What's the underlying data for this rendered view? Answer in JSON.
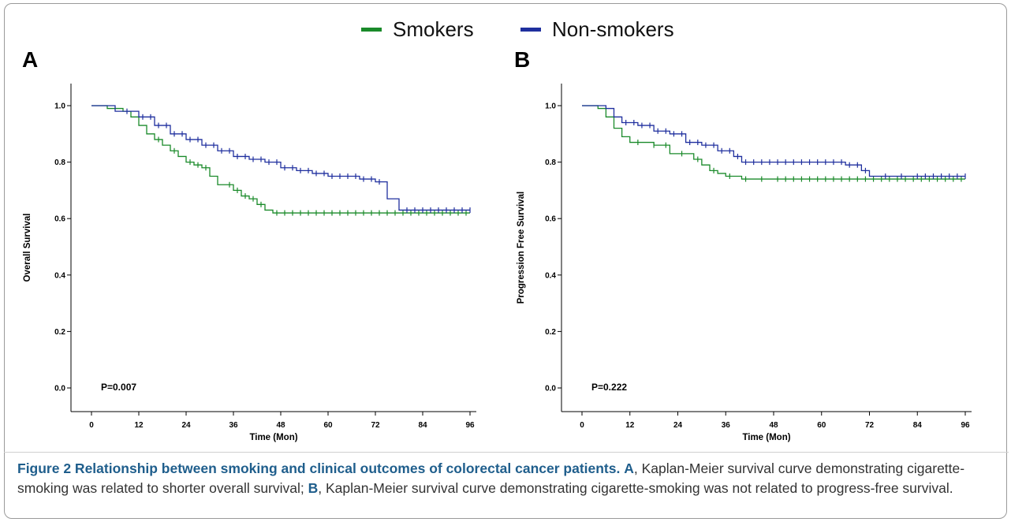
{
  "legend": {
    "smokers_label": "Smokers",
    "nonsmokers_label": "Non-smokers",
    "smokers_color": "#1a8a2a",
    "nonsmokers_color": "#1f2f9e"
  },
  "panels": {
    "a_letter": "A",
    "b_letter": "B"
  },
  "caption": {
    "bold": "Figure 2 Relationship between smoking and clinical outcomes of colorectal cancer patients.",
    "a_letter": "A",
    "a_text": ", Kaplan-Meier survival curve demonstrating cigarette-smoking was related to shorter overall survival; ",
    "b_letter": "B",
    "b_text": ", Kaplan-Meier survival curve demonstrating cigarette-smoking was not related to progress-free survival."
  },
  "chart_data": [
    {
      "type": "line",
      "panel": "A",
      "xlabel": "Time (Mon)",
      "ylabel": "Overall Survival",
      "xlim": [
        0,
        96
      ],
      "ylim": [
        0.0,
        1.0
      ],
      "xticks": [
        "0",
        "12",
        "24",
        "36",
        "48",
        "60",
        "72",
        "84",
        "96"
      ],
      "yticks": [
        "0.0",
        "0.2",
        "0.4",
        "0.6",
        "0.8",
        "1.0"
      ],
      "annotation": "P=0.007",
      "series": [
        {
          "name": "Smokers",
          "color": "#1a8a2a",
          "x": [
            0,
            4,
            8,
            10,
            12,
            14,
            16,
            18,
            20,
            22,
            24,
            26,
            28,
            30,
            32,
            34,
            36,
            38,
            40,
            42,
            44,
            46,
            96
          ],
          "y": [
            1.0,
            0.99,
            0.98,
            0.96,
            0.93,
            0.9,
            0.88,
            0.86,
            0.84,
            0.82,
            0.8,
            0.79,
            0.78,
            0.75,
            0.72,
            0.72,
            0.7,
            0.68,
            0.67,
            0.65,
            0.63,
            0.62,
            0.62
          ],
          "censor_x": [
            17,
            21,
            25,
            27,
            29,
            35,
            37,
            39,
            41,
            43,
            47,
            49,
            51,
            53,
            55,
            57,
            59,
            61,
            63,
            65,
            67,
            69,
            71,
            73,
            75,
            77,
            79,
            81,
            83,
            85,
            87,
            89,
            91,
            93,
            95
          ]
        },
        {
          "name": "Non-smokers",
          "color": "#1f2f9e",
          "x": [
            0,
            6,
            12,
            16,
            20,
            24,
            28,
            32,
            36,
            40,
            44,
            48,
            52,
            56,
            60,
            64,
            68,
            70,
            72,
            75,
            78,
            96
          ],
          "y": [
            1.0,
            0.98,
            0.96,
            0.93,
            0.9,
            0.88,
            0.86,
            0.84,
            0.82,
            0.81,
            0.8,
            0.78,
            0.77,
            0.76,
            0.75,
            0.75,
            0.74,
            0.74,
            0.73,
            0.67,
            0.63,
            0.63
          ],
          "censor_x": [
            9,
            13,
            15,
            17,
            19,
            21,
            23,
            25,
            27,
            29,
            31,
            33,
            35,
            37,
            39,
            41,
            43,
            45,
            47,
            49,
            51,
            53,
            55,
            57,
            59,
            61,
            63,
            65,
            67,
            69,
            71,
            73,
            80,
            82,
            84,
            86,
            88,
            90,
            92,
            94,
            96
          ]
        }
      ]
    },
    {
      "type": "line",
      "panel": "B",
      "xlabel": "Time (Mon)",
      "ylabel": "Progression Free Survival",
      "xlim": [
        0,
        96
      ],
      "ylim": [
        0.0,
        1.0
      ],
      "xticks": [
        "0",
        "12",
        "24",
        "36",
        "48",
        "60",
        "72",
        "84",
        "96"
      ],
      "yticks": [
        "0.0",
        "0.2",
        "0.4",
        "0.6",
        "0.8",
        "1.0"
      ],
      "annotation": "P=0.222",
      "series": [
        {
          "name": "Smokers",
          "color": "#1a8a2a",
          "x": [
            0,
            4,
            6,
            8,
            10,
            12,
            16,
            18,
            22,
            26,
            28,
            30,
            32,
            34,
            36,
            38,
            40,
            96
          ],
          "y": [
            1.0,
            0.99,
            0.96,
            0.92,
            0.89,
            0.87,
            0.87,
            0.86,
            0.83,
            0.83,
            0.81,
            0.79,
            0.77,
            0.76,
            0.75,
            0.75,
            0.74,
            0.74
          ],
          "censor_x": [
            14,
            18,
            21,
            25,
            29,
            33,
            37,
            41,
            45,
            49,
            51,
            53,
            55,
            57,
            59,
            61,
            63,
            65,
            67,
            69,
            71,
            73,
            75,
            77,
            79,
            81,
            83,
            85,
            87,
            89,
            91,
            93,
            95
          ]
        },
        {
          "name": "Non-smokers",
          "color": "#1f2f9e",
          "x": [
            0,
            6,
            8,
            10,
            14,
            18,
            22,
            26,
            30,
            34,
            38,
            40,
            44,
            52,
            60,
            66,
            70,
            72,
            96
          ],
          "y": [
            1.0,
            0.99,
            0.96,
            0.94,
            0.93,
            0.91,
            0.9,
            0.87,
            0.86,
            0.84,
            0.82,
            0.8,
            0.8,
            0.8,
            0.8,
            0.79,
            0.77,
            0.75,
            0.75
          ],
          "censor_x": [
            11,
            13,
            15,
            17,
            19,
            21,
            23,
            25,
            27,
            29,
            31,
            33,
            35,
            37,
            39,
            41,
            43,
            45,
            47,
            49,
            51,
            53,
            55,
            57,
            59,
            61,
            63,
            65,
            67,
            69,
            71,
            76,
            80,
            84,
            86,
            88,
            90,
            92,
            94,
            96
          ]
        }
      ]
    }
  ]
}
